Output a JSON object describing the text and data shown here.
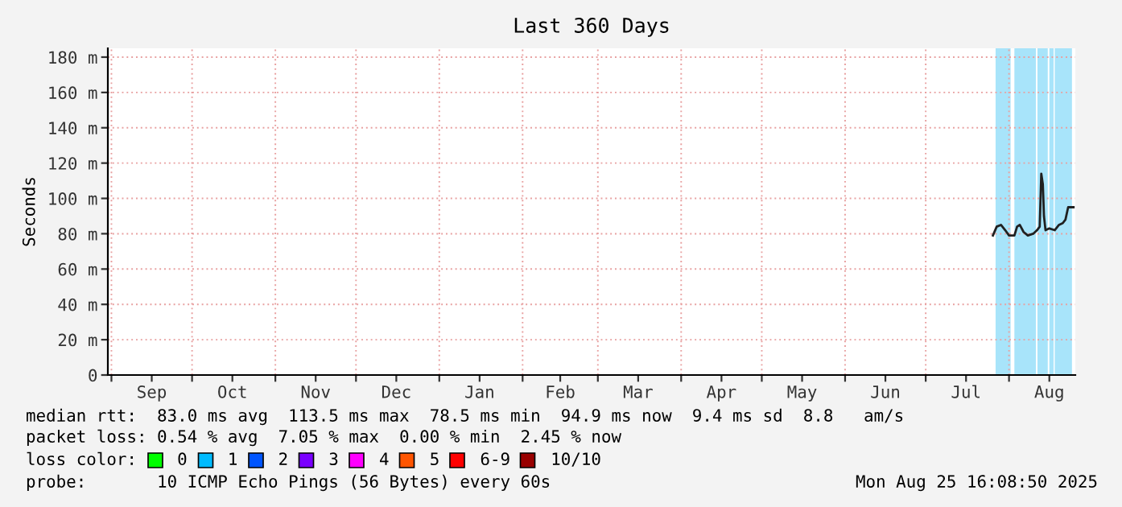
{
  "chart_data": [
    {
      "type": "line",
      "title": "Last 360 Days",
      "ylabel": "Seconds",
      "x": [
        "2025-07-26",
        "2025-07-27T10:00",
        "2025-07-29",
        "2025-07-30T14:00",
        "2025-08-01",
        "2025-08-03",
        "2025-08-04",
        "2025-08-05",
        "2025-08-06T10:00",
        "2025-08-08",
        "2025-08-10",
        "2025-08-11T10:00",
        "2025-08-12T10:00",
        "2025-08-13",
        "2025-08-13T14:00",
        "2025-08-14",
        "2025-08-14T14:00",
        "2025-08-16",
        "2025-08-18",
        "2025-08-19T14:00",
        "2025-08-21",
        "2025-08-22",
        "2025-08-23",
        "2025-08-25"
      ],
      "series": [
        {
          "color": "#202020",
          "values": [
            79,
            84,
            85,
            82,
            79,
            79,
            84,
            85,
            81,
            79,
            80,
            82,
            84,
            114,
            108,
            90,
            82,
            83,
            82,
            85,
            86,
            88,
            95,
            95
          ]
        }
      ],
      "bands": [
        {
          "axis": "x",
          "from": "2025-07-27",
          "to": "2025-08-01T14:00",
          "color": "#a8e4fa"
        },
        {
          "axis": "x",
          "from": "2025-08-03",
          "to": "2025-08-11",
          "color": "#a8e4fa"
        },
        {
          "axis": "x",
          "from": "2025-08-11T14:00",
          "to": "2025-08-15T10:00",
          "color": "#a8e4fa"
        },
        {
          "axis": "x",
          "from": "2025-08-16",
          "to": "2025-08-17T14:00",
          "color": "#a8e4fa"
        },
        {
          "axis": "x",
          "from": "2025-08-18",
          "to": "2025-08-24T10:00",
          "color": "#a8e4fa"
        }
      ],
      "xlim": [
        "2024-08-30T16:00",
        "2025-08-25T16:00"
      ],
      "xticks": [
        {
          "value": "2024-09-01",
          "label": null
        },
        {
          "value": "2024-09-16",
          "label": "Sep"
        },
        {
          "value": "2024-10-01",
          "label": null
        },
        {
          "value": "2024-10-16",
          "label": "Oct"
        },
        {
          "value": "2024-11-01",
          "label": null
        },
        {
          "value": "2024-11-16",
          "label": "Nov"
        },
        {
          "value": "2024-12-01",
          "label": null
        },
        {
          "value": "2024-12-16",
          "label": "Dec"
        },
        {
          "value": "2025-01-01",
          "label": null
        },
        {
          "value": "2025-01-16",
          "label": "Jan"
        },
        {
          "value": "2025-02-01",
          "label": null
        },
        {
          "value": "2025-02-15",
          "label": "Feb"
        },
        {
          "value": "2025-03-01",
          "label": null
        },
        {
          "value": "2025-03-16",
          "label": "Mar"
        },
        {
          "value": "2025-04-01",
          "label": null
        },
        {
          "value": "2025-04-16",
          "label": "Apr"
        },
        {
          "value": "2025-05-01",
          "label": null
        },
        {
          "value": "2025-05-16",
          "label": "May"
        },
        {
          "value": "2025-06-01",
          "label": null
        },
        {
          "value": "2025-06-16",
          "label": "Jun"
        },
        {
          "value": "2025-07-01",
          "label": null
        },
        {
          "value": "2025-07-16",
          "label": "Jul"
        },
        {
          "value": "2025-08-01",
          "label": null
        },
        {
          "value": "2025-08-16",
          "label": "Aug"
        }
      ],
      "ylim": [
        0,
        185
      ],
      "yticks": [
        0,
        {
          "value": 20,
          "label": "20 m"
        },
        {
          "value": 40,
          "label": "40 m"
        },
        {
          "value": 60,
          "label": "60 m"
        },
        {
          "value": 80,
          "label": "80 m"
        },
        {
          "value": 100,
          "label": "100 m"
        },
        {
          "value": 120,
          "label": "120 m"
        },
        {
          "value": 140,
          "label": "140 m"
        },
        {
          "value": 160,
          "label": "160 m"
        },
        {
          "value": 180,
          "label": "180 m"
        }
      ],
      "grid": true,
      "annotations": [
        "median rtt:  83.0 ms avg  113.5 ms max  78.5 ms min  94.9 ms now  9.4 ms sd  8.8   am/s",
        "packet loss: 0.54 % avg  7.05 % max  0.00 % min  2.45 % now",
        "loss color:    0    1    2    3    4    5    6-9    10/10",
        "probe:       10 ICMP Echo Pings (56 Bytes) every 60s",
        "Mon Aug 25 16:08:50 2025"
      ]
    }
  ]
}
